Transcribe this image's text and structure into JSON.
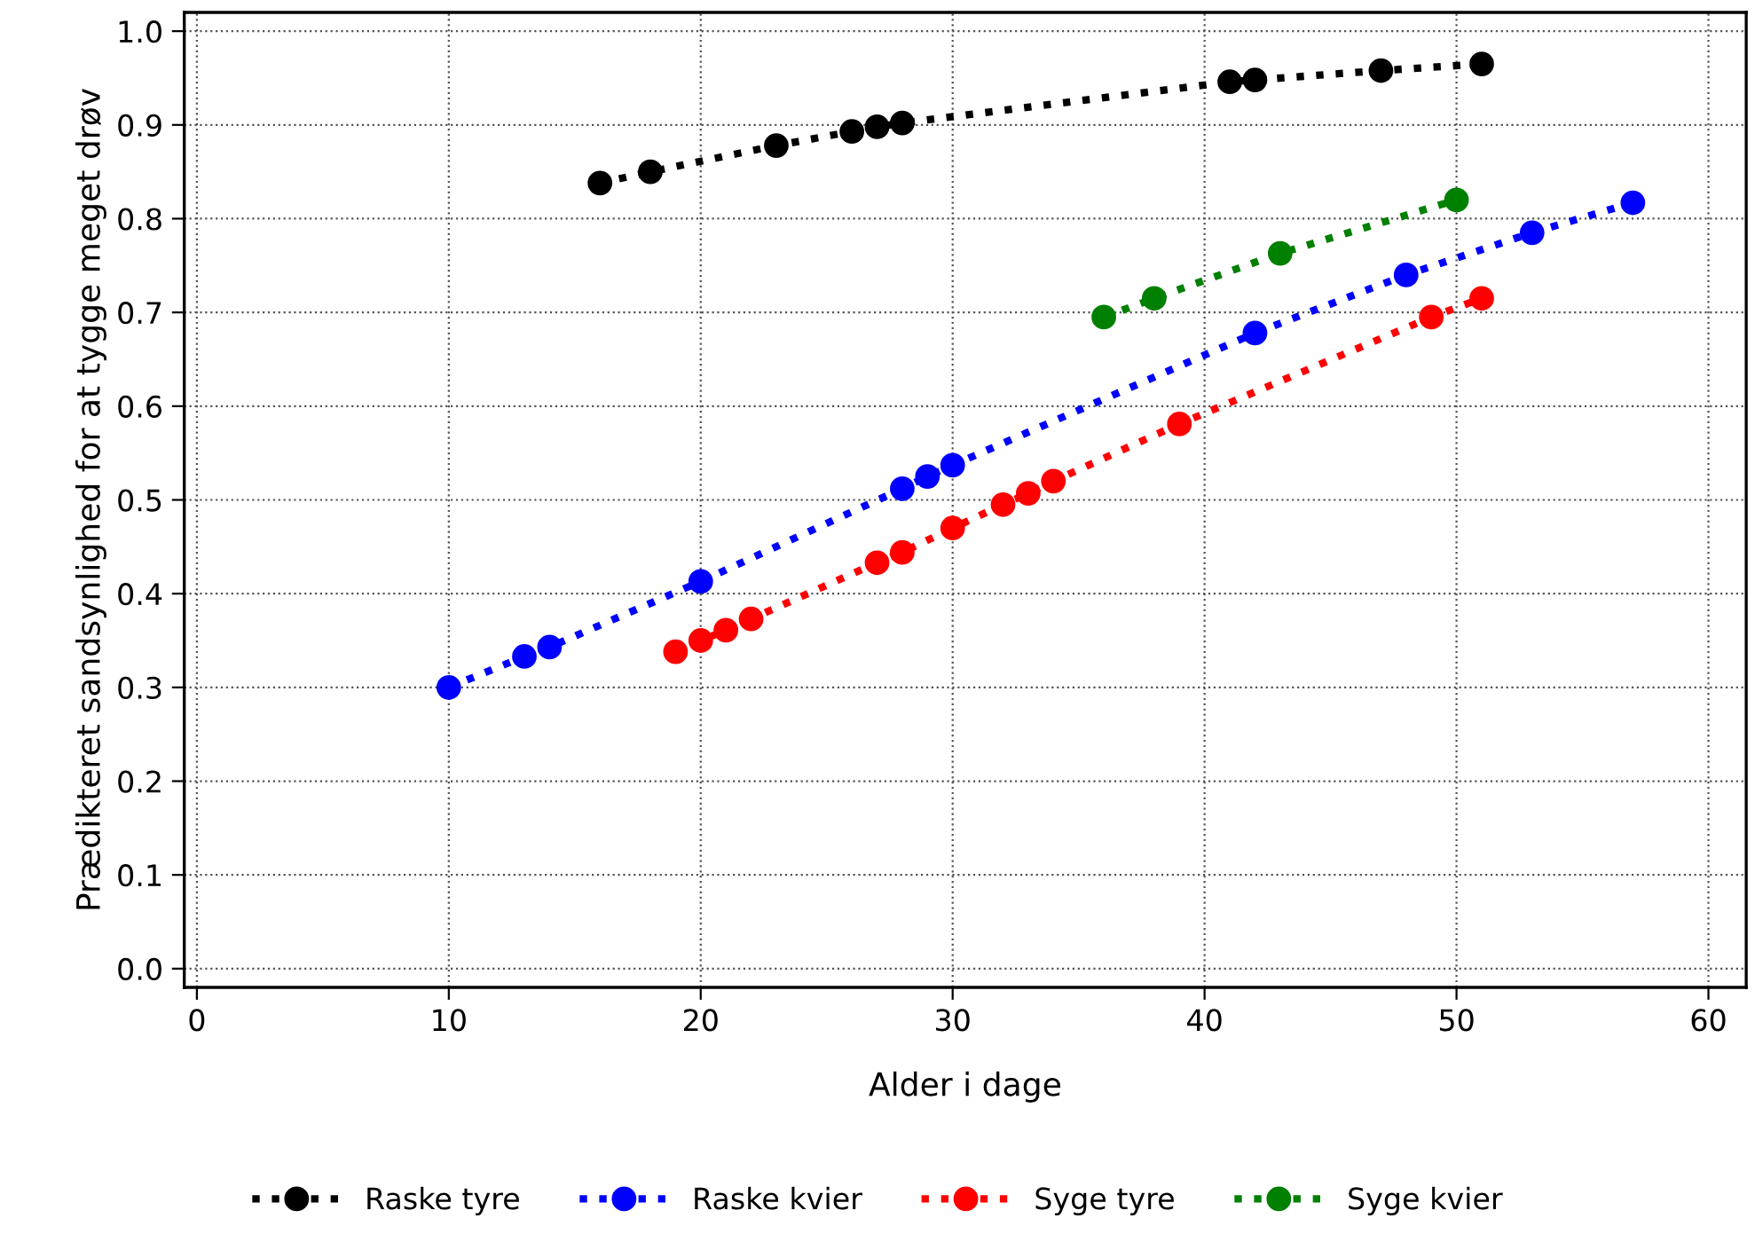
{
  "chart_data": {
    "type": "line",
    "xlabel": "Alder i dage",
    "ylabel": "Prædikteret sandsynlighed for at tygge meget drøv",
    "xlim": [
      -0.5,
      61.5
    ],
    "xticks": [
      0,
      10,
      20,
      30,
      40,
      50,
      60
    ],
    "ylim": [
      -0.02,
      1.02
    ],
    "yticks": [
      {
        "value": 0,
        "label": "0.0"
      },
      {
        "value": 0.1,
        "label": "0.1"
      },
      {
        "value": 0.2,
        "label": "0.2"
      },
      {
        "value": 0.3,
        "label": "0.3"
      },
      {
        "value": 0.4,
        "label": "0.4"
      },
      {
        "value": 0.5,
        "label": "0.5"
      },
      {
        "value": 0.6,
        "label": "0.6"
      },
      {
        "value": 0.7,
        "label": "0.7"
      },
      {
        "value": 0.8,
        "label": "0.8"
      },
      {
        "value": 0.9,
        "label": "0.9"
      },
      {
        "value": 1.0,
        "label": "1.0"
      }
    ],
    "grid": true,
    "legend": "bottom",
    "marker": "circle",
    "line_style": "dotted",
    "series": [
      {
        "name": "Raske tyre",
        "color": "#000000",
        "x": [
          16,
          18,
          23,
          26,
          27,
          28,
          41,
          42,
          47,
          51
        ],
        "values": [
          0.838,
          0.85,
          0.878,
          0.893,
          0.898,
          0.902,
          0.946,
          0.948,
          0.958,
          0.965
        ]
      },
      {
        "name": "Raske kvier",
        "color": "#0000ff",
        "x": [
          10,
          13,
          14,
          20,
          28,
          29,
          30,
          42,
          48,
          53,
          57
        ],
        "values": [
          0.3,
          0.333,
          0.343,
          0.413,
          0.512,
          0.525,
          0.537,
          0.678,
          0.74,
          0.785,
          0.817
        ]
      },
      {
        "name": "Syge tyre",
        "color": "#ff0000",
        "x": [
          19,
          20,
          21,
          22,
          27,
          28,
          30,
          32,
          33,
          34,
          39,
          49,
          51
        ],
        "values": [
          0.338,
          0.35,
          0.361,
          0.373,
          0.433,
          0.444,
          0.47,
          0.495,
          0.507,
          0.52,
          0.581,
          0.695,
          0.715
        ]
      },
      {
        "name": "Syge kvier",
        "color": "#008000",
        "x": [
          36,
          38,
          43,
          50
        ],
        "values": [
          0.695,
          0.715,
          0.763,
          0.82
        ]
      }
    ]
  }
}
